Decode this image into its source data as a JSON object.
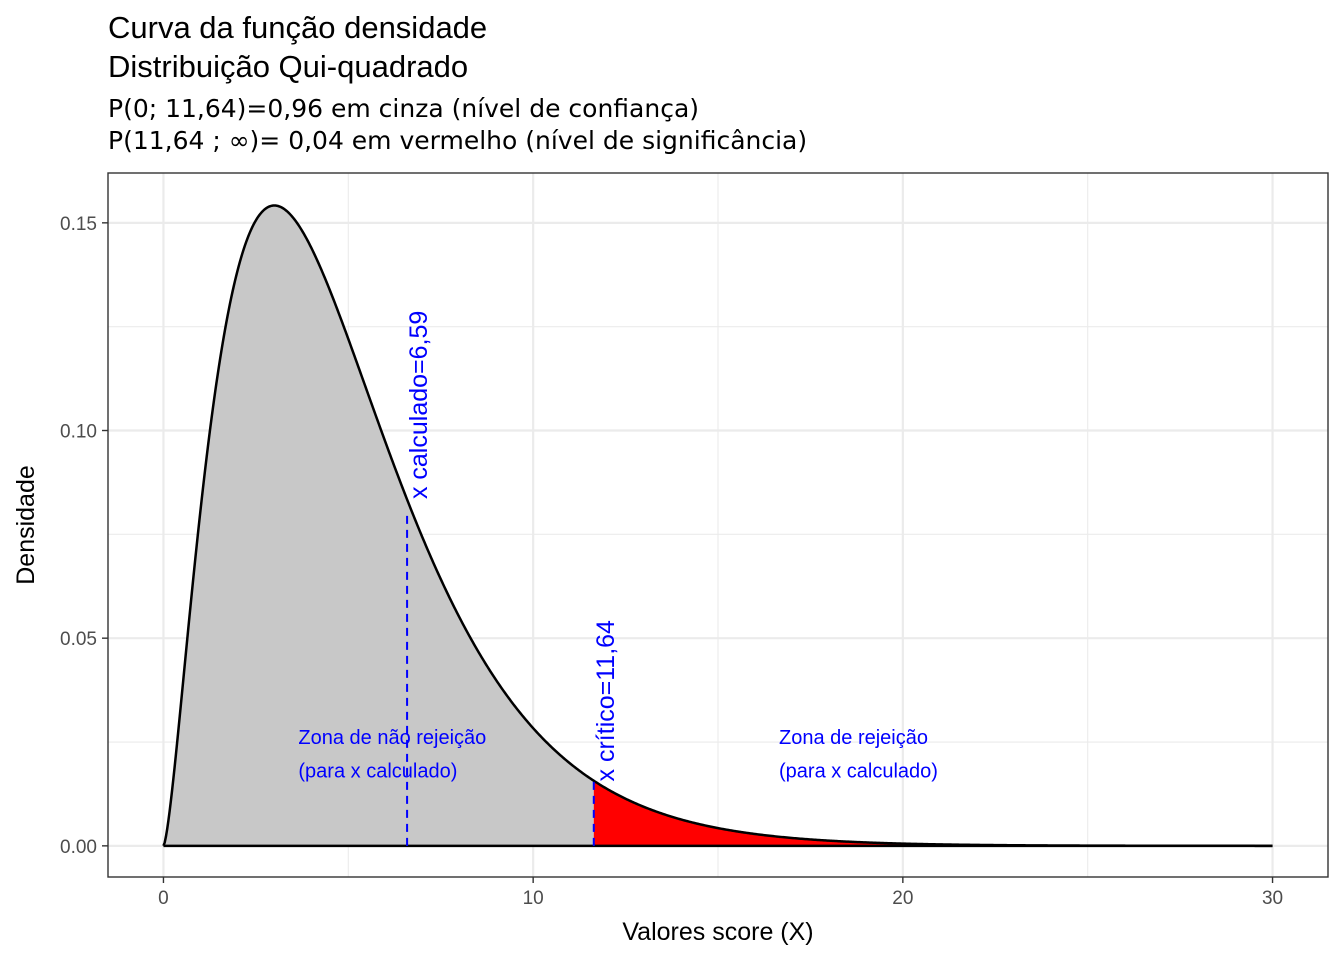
{
  "chart_data": {
    "type": "area",
    "title_line1": "Curva da função densidade",
    "title_line2": "Distribuição Qui-quadrado",
    "subtitle_line1": "P(0; 11,64)=0,96 em cinza (nível de confiança)",
    "subtitle_line2": "P(11,64 ; ∞)= 0,04 em vermelho (nível de significância)",
    "xlabel": "Valores score (X)",
    "ylabel": "Densidade",
    "xlim": [
      -1.5,
      31.5
    ],
    "ylim": [
      -0.0075,
      0.162
    ],
    "x_ticks": [
      0,
      10,
      20,
      30
    ],
    "x_tick_labels": [
      "0",
      "10",
      "20",
      "30"
    ],
    "y_ticks": [
      0.0,
      0.05,
      0.1,
      0.15
    ],
    "y_tick_labels": [
      "0.00",
      "0.05",
      "0.10",
      "0.15"
    ],
    "distribution": "chi-squared",
    "df": 5,
    "curve_x_range": [
      0,
      30
    ],
    "x_calculated": 6.59,
    "x_critical": 11.64,
    "grid": true,
    "colors": {
      "non_rejection_fill": "#c8c8c8",
      "rejection_fill": "#ff0000",
      "curve": "#000000",
      "annotation": "#0000ff",
      "grid": "#ebebeb"
    },
    "annotations": {
      "calc_label": "x calculado=6,59",
      "crit_label": "x crítico=11,64",
      "non_reject_line1": "Zona de não rejeição",
      "non_reject_line2": "(para x calculado)",
      "reject_line1": "Zona de rejeição",
      "reject_line2": "(para x calculado)"
    }
  }
}
